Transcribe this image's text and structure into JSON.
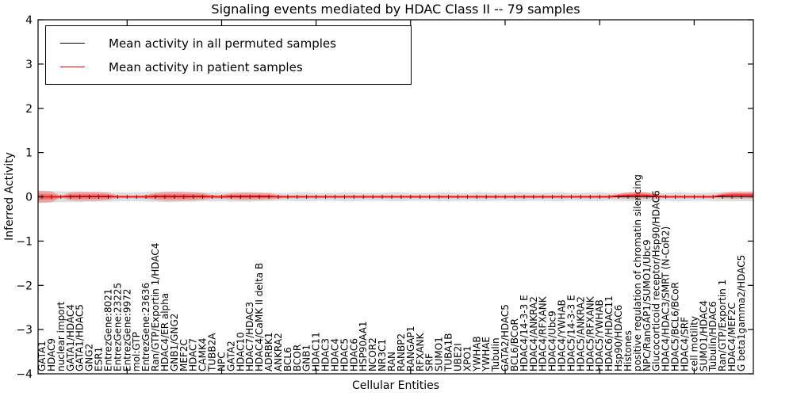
{
  "chart_data": {
    "type": "line",
    "title": "Signaling events mediated by HDAC Class II -- 79 samples",
    "xlabel": "Cellular Entities",
    "ylabel": "Inferred Activity",
    "ylim": [
      -4,
      4
    ],
    "yticks": [
      4,
      3,
      2,
      1,
      0,
      -1,
      -2,
      -3,
      -4
    ],
    "grid": false,
    "legend_position": "upper left",
    "categories": [
      "GATA1",
      "HDAC9",
      "nuclear import",
      "GATA1/HDAC4",
      "GATA1/HDAC5",
      "GNG2",
      "ESR1",
      "EntrezGene:8021",
      "EntrezGene:23225",
      "EntrezGene:9972",
      "mol:GTP",
      "EntrezGene:23636",
      "Ran/GTP/Exportin 1/HDAC4",
      "HDAC4/ER alpha",
      "GNB1/GNG2",
      "MEF2C",
      "HDAC7",
      "CAMK4",
      "TUBB2A",
      "NPC",
      "GATA2",
      "HDAC10",
      "HDAC7/HDAC3",
      "HDAC4/CaMK II delta B",
      "ADRBK1",
      "ANKRA2",
      "BCL6",
      "BCOR",
      "GNB1",
      "HDAC11",
      "HDAC3",
      "HDAC4",
      "HDAC5",
      "HDAC6",
      "HSP90AA1",
      "NCOR2",
      "NR3C1",
      "RAN",
      "RANBP2",
      "RANGAP1",
      "RFXANK",
      "SRF",
      "SUMO1",
      "TUBA1B",
      "UBE2I",
      "XPO1",
      "YWHAB",
      "YWHAE",
      "Tubulin",
      "GATA2/HDAC5",
      "BCL6/BCoR",
      "HDAC4/14-3-3 E",
      "HDAC4/ANKRA2",
      "HDAC4/RFXANK",
      "HDAC4/Ubc9",
      "HDAC4/YWHAB",
      "HDAC5/14-3-3 E",
      "HDAC5/ANKRA2",
      "HDAC5/RFXANK",
      "HDAC5/YWHAB",
      "HDAC6/HDAC11",
      "Hsp90/HDAC6",
      "Histones",
      "positive regulation of chromatin silencing",
      "NPC/RanGAP1/SUMO1/Ubc9",
      "Glucocorticoid receptor/Hsp90/HDAC6",
      "HDAC4/HDAC3/SMRT (N-CoR2)",
      "HDAC5/BCL6/BCoR",
      "HDAC4/SRF",
      "cell motility",
      "SUMO1/HDAC4",
      "Tubulin/HDAC6",
      "Ran/GTP/Exportin 1",
      "HDAC4/MEF2C",
      "G beta1gamma2/HDAC5"
    ],
    "series": [
      {
        "name": "Mean activity in all permuted samples",
        "color": "#000000",
        "band_color": "#000000",
        "band_opacity": 0.13,
        "values": [
          0,
          0,
          0,
          0,
          0,
          0,
          0,
          0,
          0,
          0,
          0,
          0,
          0,
          0,
          0,
          0,
          0,
          0,
          0,
          0,
          0,
          0,
          0,
          0,
          0,
          0,
          0,
          0,
          0,
          0,
          0,
          0,
          0,
          0,
          0,
          0,
          0,
          0,
          0,
          0,
          0,
          0,
          0,
          0,
          0,
          0,
          0,
          0,
          0,
          0,
          0,
          0,
          0,
          0,
          0,
          0,
          0,
          0,
          0,
          0,
          0,
          0,
          0,
          0,
          0,
          0,
          0,
          0,
          0,
          0,
          0,
          0,
          0,
          0,
          0
        ],
        "band_halfwidth": [
          0.14,
          0.13,
          0.12,
          0.12,
          0.12,
          0.11,
          0.11,
          0.11,
          0.1,
          0.1,
          0.1,
          0.11,
          0.11,
          0.12,
          0.12,
          0.11,
          0.11,
          0.1,
          0.1,
          0.1,
          0.11,
          0.11,
          0.11,
          0.1,
          0.1,
          0.09,
          0.09,
          0.1,
          0.1,
          0.09,
          0.09,
          0.09,
          0.1,
          0.1,
          0.09,
          0.09,
          0.09,
          0.1,
          0.1,
          0.09,
          0.09,
          0.09,
          0.1,
          0.1,
          0.09,
          0.09,
          0.1,
          0.1,
          0.09,
          0.09,
          0.1,
          0.1,
          0.09,
          0.09,
          0.1,
          0.1,
          0.09,
          0.09,
          0.1,
          0.1,
          0.09,
          0.09,
          0.1,
          0.1,
          0.1,
          0.09,
          0.09,
          0.1,
          0.1,
          0.09,
          0.09,
          0.1,
          0.1,
          0.1,
          0.1
        ]
      },
      {
        "name": "Mean activity in patient samples",
        "color": "#ff0000",
        "band_color": "#ff0000",
        "band_opacity": 0.25,
        "values": [
          0,
          0,
          0,
          0.01,
          0.01,
          0.01,
          0.01,
          0.01,
          0,
          0,
          0,
          0,
          0.01,
          0.01,
          0.01,
          0.01,
          0.01,
          0.01,
          0,
          0,
          0.01,
          0.01,
          0.01,
          0.01,
          0.01,
          0,
          0,
          0,
          0,
          0,
          0,
          0,
          0,
          0,
          0,
          0,
          0,
          0,
          0,
          0,
          0,
          0,
          0,
          0,
          0,
          0,
          0,
          0,
          0,
          0,
          0,
          0,
          0,
          0,
          0,
          0,
          0,
          0,
          0,
          0,
          0,
          0.02,
          0.03,
          0.04,
          0.03,
          0.01,
          0,
          0,
          0,
          0,
          0,
          0,
          0.03,
          0.04,
          0.04
        ],
        "band_halfwidth": [
          0.13,
          0.12,
          0.02,
          0.09,
          0.1,
          0.1,
          0.1,
          0.08,
          0.03,
          0.03,
          0.03,
          0.04,
          0.08,
          0.1,
          0.1,
          0.1,
          0.09,
          0.08,
          0.04,
          0.04,
          0.07,
          0.08,
          0.08,
          0.08,
          0.07,
          0.04,
          0.03,
          0.03,
          0.03,
          0.03,
          0.03,
          0.03,
          0.03,
          0.03,
          0.03,
          0.03,
          0.03,
          0.03,
          0.03,
          0.03,
          0.03,
          0.03,
          0.03,
          0.03,
          0.03,
          0.03,
          0.03,
          0.03,
          0.03,
          0.03,
          0.03,
          0.03,
          0.03,
          0.03,
          0.03,
          0.03,
          0.03,
          0.03,
          0.03,
          0.03,
          0.03,
          0.05,
          0.07,
          0.08,
          0.07,
          0.04,
          0.03,
          0.03,
          0.03,
          0.03,
          0.03,
          0.03,
          0.06,
          0.08,
          0.08
        ]
      }
    ]
  }
}
